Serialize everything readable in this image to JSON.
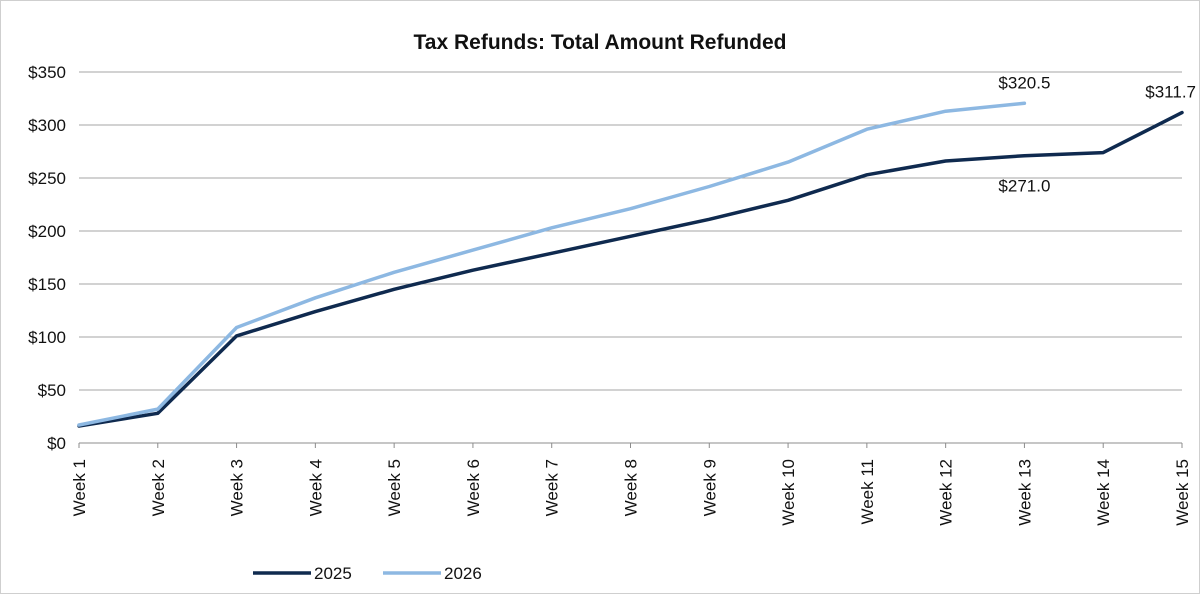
{
  "chart_data": {
    "type": "line",
    "title": "Tax Refunds: Total Amount Refunded",
    "xlabel": "",
    "ylabel": "",
    "categories": [
      "Week 1",
      "Week 2",
      "Week 3",
      "Week 4",
      "Week 5",
      "Week 6",
      "Week 7",
      "Week 8",
      "Week 9",
      "Week 10",
      "Week 11",
      "Week 12",
      "Week 13",
      "Week 14",
      "Week 15"
    ],
    "yticks": [
      "$0",
      "$50",
      "$100",
      "$150",
      "$200",
      "$250",
      "$300",
      "$350"
    ],
    "ylim": [
      0,
      350
    ],
    "grid": true,
    "legend_position": "bottom",
    "series": [
      {
        "name": "2025",
        "color": "#0f2a4f",
        "values": [
          16,
          28,
          101,
          124,
          145,
          163,
          179,
          195,
          211,
          229,
          253,
          266,
          271.0,
          274,
          311.7
        ]
      },
      {
        "name": "2026",
        "color": "#8db8e2",
        "values": [
          17,
          32,
          109,
          137,
          161,
          182,
          203,
          221,
          242,
          265,
          296,
          313,
          320.5,
          null,
          null
        ]
      }
    ],
    "annotations": [
      {
        "text": "$320.5",
        "series": 1,
        "index": 12,
        "placement": "above"
      },
      {
        "text": "$311.7",
        "series": 0,
        "index": 14,
        "placement": "above"
      },
      {
        "text": "$271.0",
        "series": 0,
        "index": 12,
        "placement": "below"
      }
    ]
  }
}
